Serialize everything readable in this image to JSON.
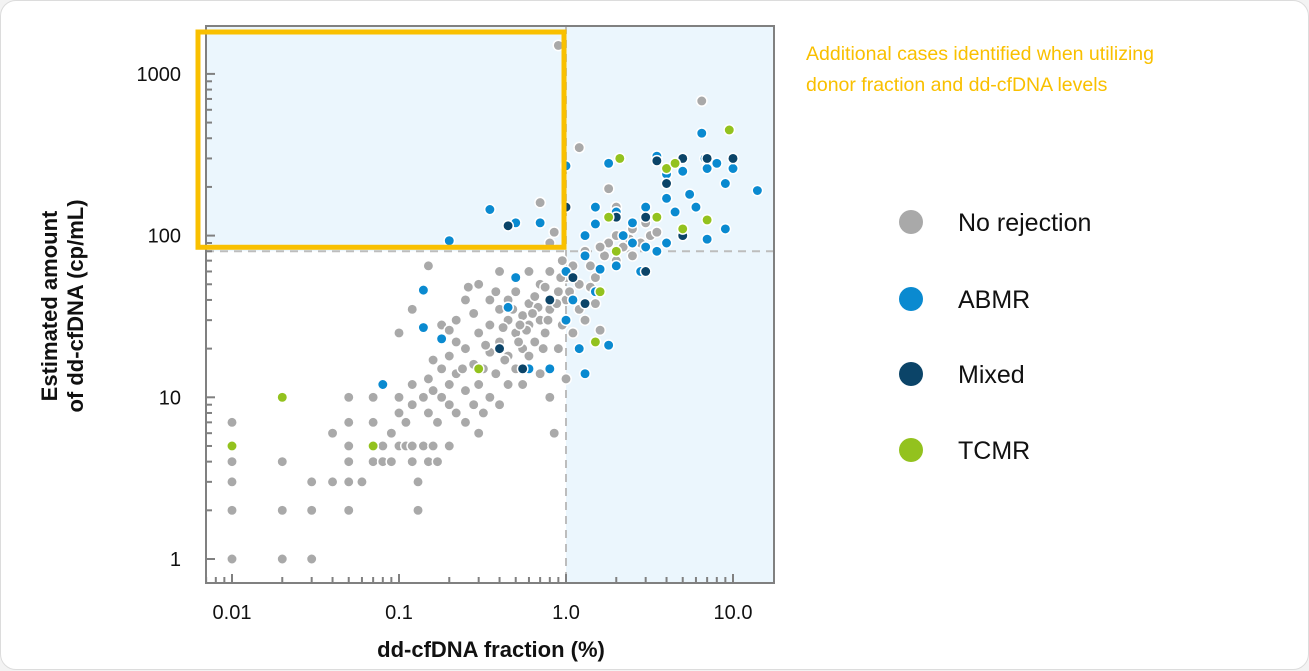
{
  "chart_data": {
    "type": "scatter",
    "xlabel": "dd-cfDNA fraction (%)",
    "ylabel_lines": [
      "Estimated amount",
      "of dd-cfDNA (cp/mL)"
    ],
    "x_scale": "log",
    "y_scale": "log",
    "xlim": [
      0.0085,
      16
    ],
    "ylim": [
      0.85,
      2000
    ],
    "x_ticks": [
      {
        "value": 0.01,
        "label": "0.01"
      },
      {
        "value": 0.1,
        "label": "0.1"
      },
      {
        "value": 1,
        "label": "1.0"
      },
      {
        "value": 10,
        "label": "10.0"
      }
    ],
    "y_ticks": [
      {
        "value": 1,
        "label": "1"
      },
      {
        "value": 10,
        "label": "10"
      },
      {
        "value": 100,
        "label": "100"
      },
      {
        "value": 1000,
        "label": "1000"
      }
    ],
    "thresholds": {
      "x": 1.0,
      "y": 80
    },
    "grid": false,
    "legend_position": "right",
    "annotation": {
      "lines": [
        "Additional cases identified when utilizing",
        "donor fraction and dd-cfDNA levels"
      ],
      "color": "#f9c000"
    },
    "highlight_color": "#f9c000",
    "shade_color": "#ebf6fd",
    "series": [
      {
        "name": "No rejection",
        "color": "#a9a9a9",
        "points": [
          [
            0.01,
            1
          ],
          [
            0.01,
            2
          ],
          [
            0.01,
            3
          ],
          [
            0.01,
            4
          ],
          [
            0.01,
            7
          ],
          [
            0.02,
            1
          ],
          [
            0.02,
            2
          ],
          [
            0.02,
            4
          ],
          [
            0.03,
            1
          ],
          [
            0.03,
            2
          ],
          [
            0.03,
            3
          ],
          [
            0.04,
            3
          ],
          [
            0.04,
            6
          ],
          [
            0.05,
            2
          ],
          [
            0.05,
            3
          ],
          [
            0.05,
            4
          ],
          [
            0.05,
            5
          ],
          [
            0.05,
            7
          ],
          [
            0.05,
            10
          ],
          [
            0.06,
            3
          ],
          [
            0.07,
            4
          ],
          [
            0.07,
            7
          ],
          [
            0.07,
            10
          ],
          [
            0.08,
            4
          ],
          [
            0.08,
            5
          ],
          [
            0.09,
            4
          ],
          [
            0.09,
            6
          ],
          [
            0.1,
            5
          ],
          [
            0.1,
            8
          ],
          [
            0.1,
            10
          ],
          [
            0.11,
            5
          ],
          [
            0.11,
            7
          ],
          [
            0.12,
            4
          ],
          [
            0.12,
            5
          ],
          [
            0.12,
            9
          ],
          [
            0.12,
            12
          ],
          [
            0.13,
            3
          ],
          [
            0.13,
            2
          ],
          [
            0.14,
            5
          ],
          [
            0.14,
            10
          ],
          [
            0.15,
            4
          ],
          [
            0.15,
            8
          ],
          [
            0.15,
            13
          ],
          [
            0.16,
            5
          ],
          [
            0.16,
            17
          ],
          [
            0.17,
            4
          ],
          [
            0.17,
            7
          ],
          [
            0.18,
            10
          ],
          [
            0.18,
            15
          ],
          [
            0.2,
            5
          ],
          [
            0.2,
            9
          ],
          [
            0.2,
            12
          ],
          [
            0.2,
            18
          ],
          [
            0.22,
            8
          ],
          [
            0.22,
            14
          ],
          [
            0.22,
            30
          ],
          [
            0.25,
            7
          ],
          [
            0.25,
            11
          ],
          [
            0.25,
            20
          ],
          [
            0.28,
            9
          ],
          [
            0.28,
            16
          ],
          [
            0.3,
            6
          ],
          [
            0.3,
            12
          ],
          [
            0.3,
            25
          ],
          [
            0.32,
            8
          ],
          [
            0.35,
            10
          ],
          [
            0.35,
            19
          ],
          [
            0.35,
            28
          ],
          [
            0.38,
            14
          ],
          [
            0.4,
            9
          ],
          [
            0.4,
            22
          ],
          [
            0.4,
            35
          ],
          [
            0.45,
            12
          ],
          [
            0.45,
            18
          ],
          [
            0.45,
            30
          ],
          [
            0.5,
            15
          ],
          [
            0.5,
            25
          ],
          [
            0.5,
            45
          ],
          [
            0.55,
            20
          ],
          [
            0.55,
            12
          ],
          [
            0.6,
            28
          ],
          [
            0.6,
            18
          ],
          [
            0.6,
            38
          ],
          [
            0.65,
            22
          ],
          [
            0.7,
            14
          ],
          [
            0.7,
            30
          ],
          [
            0.7,
            50
          ],
          [
            0.75,
            25
          ],
          [
            0.8,
            10
          ],
          [
            0.8,
            35
          ],
          [
            0.8,
            60
          ],
          [
            0.85,
            6
          ],
          [
            0.9,
            20
          ],
          [
            0.9,
            45
          ],
          [
            0.95,
            70
          ],
          [
            0.15,
            65
          ],
          [
            0.12,
            35
          ],
          [
            0.1,
            25
          ],
          [
            0.18,
            28
          ],
          [
            0.25,
            40
          ],
          [
            0.3,
            50
          ],
          [
            0.4,
            60
          ],
          [
            0.5,
            55
          ],
          [
            0.7,
            120
          ],
          [
            0.7,
            160
          ],
          [
            0.9,
            1500
          ],
          [
            1.0,
            13
          ],
          [
            1.0,
            30
          ],
          [
            1.0,
            40
          ],
          [
            1.0,
            55
          ],
          [
            1.1,
            25
          ],
          [
            1.1,
            65
          ],
          [
            1.2,
            35
          ],
          [
            1.3,
            30
          ],
          [
            1.3,
            80
          ],
          [
            1.4,
            48
          ],
          [
            1.5,
            38
          ],
          [
            1.5,
            55
          ],
          [
            1.6,
            26
          ],
          [
            1.7,
            75
          ],
          [
            1.8,
            90
          ],
          [
            1.8,
            195
          ],
          [
            2.0,
            70
          ],
          [
            2.0,
            100
          ],
          [
            2.2,
            85
          ],
          [
            2.5,
            110
          ],
          [
            2.5,
            75
          ],
          [
            2.8,
            90
          ],
          [
            3,
            120
          ],
          [
            3.2,
            100
          ],
          [
            3.5,
            105
          ],
          [
            1.2,
            350
          ],
          [
            0.8,
            90
          ],
          [
            0.85,
            105
          ],
          [
            6.5,
            680
          ],
          [
            2,
            150
          ],
          [
            0.26,
            48
          ],
          [
            0.22,
            22
          ],
          [
            0.45,
            40
          ],
          [
            0.55,
            32
          ],
          [
            0.65,
            42
          ],
          [
            0.75,
            48
          ],
          [
            0.35,
            40
          ],
          [
            0.32,
            15
          ],
          [
            0.42,
            27
          ],
          [
            0.52,
            22
          ],
          [
            0.6,
            60
          ],
          [
            0.28,
            33
          ],
          [
            0.38,
            45
          ],
          [
            0.48,
            35
          ],
          [
            0.58,
            26
          ],
          [
            0.68,
            36
          ],
          [
            0.78,
            30
          ],
          [
            0.88,
            38
          ],
          [
            0.95,
            28
          ],
          [
            1.05,
            45
          ],
          [
            1.2,
            50
          ],
          [
            1.4,
            65
          ],
          [
            1.6,
            85
          ],
          [
            2.4,
            95
          ],
          [
            0.2,
            26
          ],
          [
            0.16,
            11
          ],
          [
            0.24,
            15
          ],
          [
            0.33,
            21
          ],
          [
            0.43,
            17
          ],
          [
            0.53,
            28
          ],
          [
            0.63,
            33
          ],
          [
            0.73,
            20
          ],
          [
            0.93,
            55
          ]
        ]
      },
      {
        "name": "ABMR",
        "color": "#0a8ad0",
        "points": [
          [
            0.08,
            12
          ],
          [
            0.14,
            46
          ],
          [
            0.14,
            27
          ],
          [
            0.18,
            23
          ],
          [
            0.2,
            93
          ],
          [
            0.35,
            145
          ],
          [
            0.5,
            120
          ],
          [
            0.7,
            120
          ],
          [
            0.45,
            36
          ],
          [
            0.5,
            55
          ],
          [
            0.6,
            15
          ],
          [
            0.8,
            15
          ],
          [
            1.0,
            270
          ],
          [
            1.0,
            60
          ],
          [
            1.0,
            30
          ],
          [
            1.1,
            40
          ],
          [
            1.2,
            20
          ],
          [
            1.3,
            14
          ],
          [
            1.5,
            45
          ],
          [
            1.8,
            21
          ],
          [
            1.5,
            118
          ],
          [
            1.8,
            280
          ],
          [
            2.0,
            140
          ],
          [
            2.2,
            100
          ],
          [
            2.5,
            120
          ],
          [
            3,
            150
          ],
          [
            3.5,
            310
          ],
          [
            4,
            240
          ],
          [
            4.5,
            140
          ],
          [
            5,
            110
          ],
          [
            5.5,
            180
          ],
          [
            6.5,
            430
          ],
          [
            6.8,
            300
          ],
          [
            7,
            260
          ],
          [
            8,
            280
          ],
          [
            9,
            210
          ],
          [
            10,
            260
          ],
          [
            14,
            190
          ],
          [
            7,
            95
          ],
          [
            9,
            110
          ],
          [
            2.8,
            60
          ],
          [
            3.5,
            80
          ],
          [
            2.5,
            90
          ],
          [
            4,
            90
          ],
          [
            1.3,
            75
          ],
          [
            1.6,
            62
          ],
          [
            2,
            65
          ],
          [
            3,
            85
          ],
          [
            6,
            150
          ],
          [
            4,
            170
          ],
          [
            5,
            250
          ],
          [
            1.3,
            100
          ],
          [
            1.5,
            150
          ]
        ]
      },
      {
        "name": "Mixed",
        "color": "#0b4468",
        "points": [
          [
            0.45,
            115
          ],
          [
            0.55,
            15
          ],
          [
            1,
            150
          ],
          [
            1.1,
            55
          ],
          [
            2,
            130
          ],
          [
            3,
            130
          ],
          [
            3.5,
            290
          ],
          [
            5,
            300
          ],
          [
            7,
            300
          ],
          [
            10,
            300
          ],
          [
            4,
            210
          ],
          [
            5,
            100
          ],
          [
            3,
            60
          ],
          [
            0.4,
            20
          ],
          [
            0.8,
            40
          ],
          [
            1.3,
            38
          ]
        ]
      },
      {
        "name": "TCMR",
        "color": "#93c21e",
        "points": [
          [
            0.01,
            5
          ],
          [
            0.02,
            10
          ],
          [
            0.07,
            5
          ],
          [
            0.3,
            15
          ],
          [
            1.5,
            22
          ],
          [
            1.6,
            45
          ],
          [
            1.8,
            130
          ],
          [
            2.1,
            300
          ],
          [
            2,
            80
          ],
          [
            3.5,
            130
          ],
          [
            4,
            260
          ],
          [
            5,
            110
          ],
          [
            7,
            125
          ],
          [
            9.5,
            450
          ],
          [
            4.5,
            280
          ]
        ]
      }
    ]
  }
}
